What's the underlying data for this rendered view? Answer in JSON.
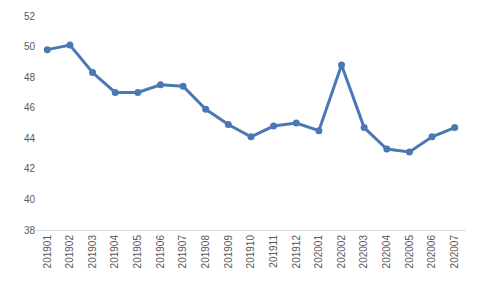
{
  "chart_data": {
    "type": "line",
    "categories": [
      "201901",
      "201902",
      "201903",
      "201904",
      "201905",
      "201906",
      "201907",
      "201908",
      "201909",
      "201910",
      "201911",
      "201912",
      "202001",
      "202002",
      "202003",
      "202004",
      "202005",
      "202006",
      "202007"
    ],
    "values": [
      49.8,
      50.1,
      48.3,
      47.0,
      47.0,
      47.5,
      47.4,
      45.9,
      44.9,
      44.1,
      44.8,
      45.0,
      44.5,
      48.8,
      44.7,
      43.3,
      43.1,
      44.1,
      44.7
    ],
    "color": "#4a78b5",
    "marker": "circle",
    "ylim": [
      38,
      52
    ],
    "yticks": [
      38,
      40,
      42,
      44,
      46,
      48,
      50,
      52
    ],
    "grid": false
  }
}
